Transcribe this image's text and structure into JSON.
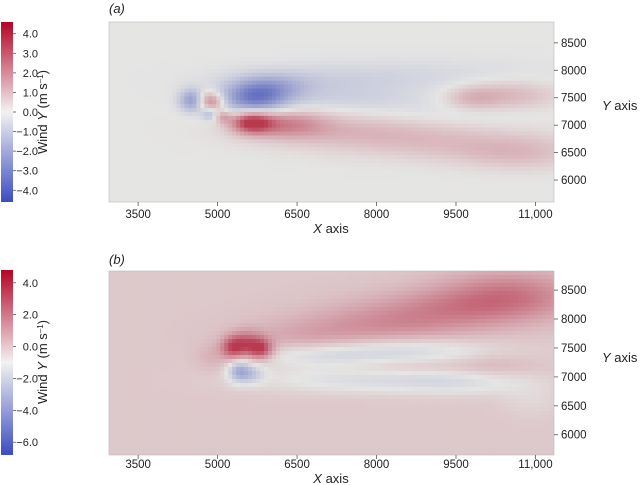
{
  "chart_data": [
    {
      "type": "heatmap",
      "panel_label": "(a)",
      "xlabel": "X axis",
      "ylabel": "Y axis",
      "x_ticks": [
        "3500",
        "5000",
        "6500",
        "8000",
        "9500",
        "11,000"
      ],
      "x_tick_values": [
        3500,
        5000,
        6500,
        8000,
        9500,
        11000
      ],
      "y_ticks": [
        "6000",
        "6500",
        "7000",
        "7500",
        "8000",
        "8500"
      ],
      "y_tick_values": [
        6000,
        6500,
        7000,
        7500,
        8000,
        8500
      ],
      "xlim": [
        2950,
        11350
      ],
      "ylim": [
        5600,
        8880
      ],
      "colorbar": {
        "label_parts": [
          "Wind ",
          "Y",
          " (m s",
          "–1",
          ")"
        ],
        "ticks": [
          "4.0",
          "3.0",
          "2.0",
          "1.0",
          "0.0",
          "−1.0",
          "−2.0",
          "−3.0",
          "−4.0"
        ],
        "tick_values": [
          4,
          3,
          2,
          1,
          0,
          -1,
          -2,
          -3,
          -4
        ],
        "range": [
          -4.6,
          4.6
        ],
        "colormap": [
          "#3b4cc0",
          "#f2f2f2",
          "#b40426"
        ]
      },
      "background_value": 0.0,
      "features": [
        {
          "x": 4550,
          "y": 7450,
          "sx": 180,
          "sy": 140,
          "v": -3.2
        },
        {
          "x": 4750,
          "y": 7450,
          "sx": 150,
          "sy": 130,
          "v": 2.4
        },
        {
          "x": 4950,
          "y": 7420,
          "sx": 140,
          "sy": 120,
          "v": 1.8
        },
        {
          "x": 4850,
          "y": 7200,
          "sx": 120,
          "sy": 90,
          "v": -1.6
        },
        {
          "x": 5100,
          "y": 7150,
          "sx": 110,
          "sy": 80,
          "v": 1.5
        },
        {
          "x": 5700,
          "y": 7480,
          "sx": 420,
          "sy": 190,
          "v": -3.4
        },
        {
          "x": 6000,
          "y": 7700,
          "sx": 500,
          "sy": 170,
          "v": -1.6
        },
        {
          "x": 6900,
          "y": 7750,
          "sx": 1300,
          "sy": 220,
          "v": -0.7
        },
        {
          "x": 9000,
          "y": 7900,
          "sx": 1800,
          "sy": 220,
          "v": -0.45
        },
        {
          "x": 5650,
          "y": 7050,
          "sx": 260,
          "sy": 130,
          "v": 4.2
        },
        {
          "x": 6250,
          "y": 7020,
          "sx": 550,
          "sy": 170,
          "v": 2.2
        },
        {
          "x": 7500,
          "y": 6900,
          "sx": 1300,
          "sy": 220,
          "v": 1.1
        },
        {
          "x": 9600,
          "y": 6650,
          "sx": 1500,
          "sy": 220,
          "v": 0.9
        },
        {
          "x": 10700,
          "y": 6450,
          "sx": 800,
          "sy": 200,
          "v": 0.8
        },
        {
          "x": 10450,
          "y": 7550,
          "sx": 700,
          "sy": 200,
          "v": 1.3
        },
        {
          "x": 9800,
          "y": 7480,
          "sx": 350,
          "sy": 150,
          "v": 0.9
        },
        {
          "x": 7600,
          "y": 7450,
          "sx": 1100,
          "sy": 140,
          "v": -0.5
        },
        {
          "x": 9500,
          "y": 7200,
          "sx": 1200,
          "sy": 150,
          "v": -0.35
        }
      ]
    },
    {
      "type": "heatmap",
      "panel_label": "(b)",
      "xlabel": "X axis",
      "ylabel": "Y axis",
      "x_ticks": [
        "3500",
        "5000",
        "6500",
        "8000",
        "9500",
        "11,000"
      ],
      "x_tick_values": [
        3500,
        5000,
        6500,
        8000,
        9500,
        11000
      ],
      "y_ticks": [
        "6000",
        "6500",
        "7000",
        "7500",
        "8000",
        "8500"
      ],
      "y_tick_values": [
        6000,
        6500,
        7000,
        7500,
        8000,
        8500
      ],
      "xlim": [
        2950,
        11350
      ],
      "ylim": [
        5650,
        8830
      ],
      "colorbar": {
        "label_parts": [
          "Wind ",
          "Y",
          " (m s",
          "–1",
          ")"
        ],
        "ticks": [
          "4.0",
          "2.0",
          "0.0",
          "−2.0",
          "−4.0",
          "−6.0"
        ],
        "tick_values": [
          4,
          2,
          0,
          -2,
          -4,
          -6
        ],
        "range": [
          -6.8,
          4.8
        ],
        "colormap": [
          "#3b4cc0",
          "#f2f2f2",
          "#b40426"
        ]
      },
      "background_value": 0.0,
      "features": [
        {
          "x": 5300,
          "y": 7500,
          "sx": 160,
          "sy": 130,
          "v": 4.0
        },
        {
          "x": 5800,
          "y": 7480,
          "sx": 170,
          "sy": 120,
          "v": 4.5
        },
        {
          "x": 5550,
          "y": 7600,
          "sx": 200,
          "sy": 140,
          "v": 2.5
        },
        {
          "x": 5400,
          "y": 7100,
          "sx": 150,
          "sy": 130,
          "v": -3.0
        },
        {
          "x": 5650,
          "y": 7050,
          "sx": 180,
          "sy": 120,
          "v": -1.8
        },
        {
          "x": 4900,
          "y": 7350,
          "sx": 220,
          "sy": 170,
          "v": 0.8
        },
        {
          "x": 6700,
          "y": 7650,
          "sx": 900,
          "sy": 200,
          "v": 1.0
        },
        {
          "x": 8200,
          "y": 7900,
          "sx": 1200,
          "sy": 220,
          "v": 1.6
        },
        {
          "x": 9500,
          "y": 8200,
          "sx": 1200,
          "sy": 230,
          "v": 1.8
        },
        {
          "x": 10500,
          "y": 8450,
          "sx": 900,
          "sy": 280,
          "v": 2.3
        },
        {
          "x": 6900,
          "y": 7350,
          "sx": 900,
          "sy": 160,
          "v": -1.2
        },
        {
          "x": 8500,
          "y": 7450,
          "sx": 1300,
          "sy": 160,
          "v": -1.6
        },
        {
          "x": 7800,
          "y": 6950,
          "sx": 1500,
          "sy": 160,
          "v": -1.4
        },
        {
          "x": 9700,
          "y": 6900,
          "sx": 900,
          "sy": 150,
          "v": -1.0
        },
        {
          "x": 8600,
          "y": 7180,
          "sx": 1300,
          "sy": 100,
          "v": 0.6
        },
        {
          "x": 10200,
          "y": 7200,
          "sx": 500,
          "sy": 200,
          "v": 0.5
        },
        {
          "x": 10900,
          "y": 6600,
          "sx": 400,
          "sy": 200,
          "v": -0.5
        }
      ]
    }
  ]
}
